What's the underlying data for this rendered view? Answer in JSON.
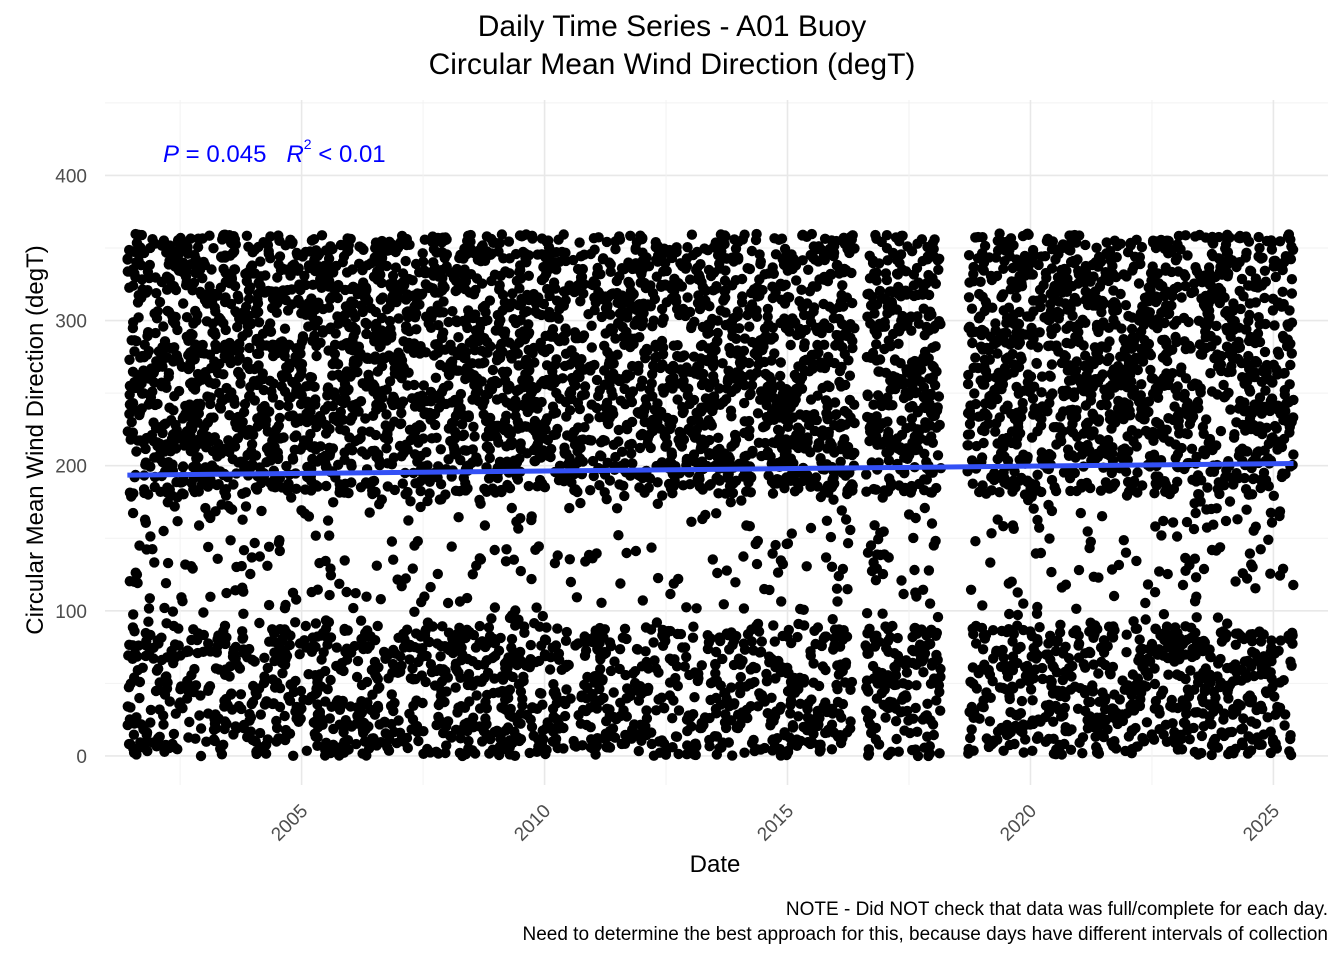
{
  "chart_data": {
    "type": "scatter",
    "title": "Daily Time Series - A01 Buoy",
    "subtitle": "Circular Mean Wind Direction (degT)",
    "xlabel": "Date",
    "ylabel": "Circular Mean Wind Direction (degT)",
    "x_ticks": [
      "2005",
      "2010",
      "2015",
      "2020",
      "2025"
    ],
    "y_ticks": [
      "0",
      "100",
      "200",
      "300",
      "400"
    ],
    "xlim": [
      "2000-12-15",
      "2026-02-15"
    ],
    "ylim": [
      -20,
      452
    ],
    "grid": true,
    "point_color": "#000000",
    "trend_color": "#3350f5",
    "annotation_color": "#0000ff",
    "annotation": {
      "p_symbol": "P",
      "p_text": " = 0.045",
      "r_symbol": "R",
      "r_power": "2",
      "r_text": " < 0.01"
    },
    "trend_line": {
      "x": [
        "2001-06-01",
        "2025-06-01"
      ],
      "y": [
        193.5,
        201.5
      ]
    },
    "data_coverage": {
      "start": "2001-06-01",
      "end": "2025-06-01",
      "gaps": [
        [
          "2016-05-20",
          "2016-08-10"
        ],
        [
          "2018-03-01",
          "2018-09-15"
        ]
      ],
      "approx_points": 7000,
      "y_min": 0,
      "y_max": 360
    },
    "caption": [
      "NOTE - Did NOT check that data was full/complete for each day.",
      "Need to determine the best approach for this, because days have different intervals of collection"
    ]
  }
}
